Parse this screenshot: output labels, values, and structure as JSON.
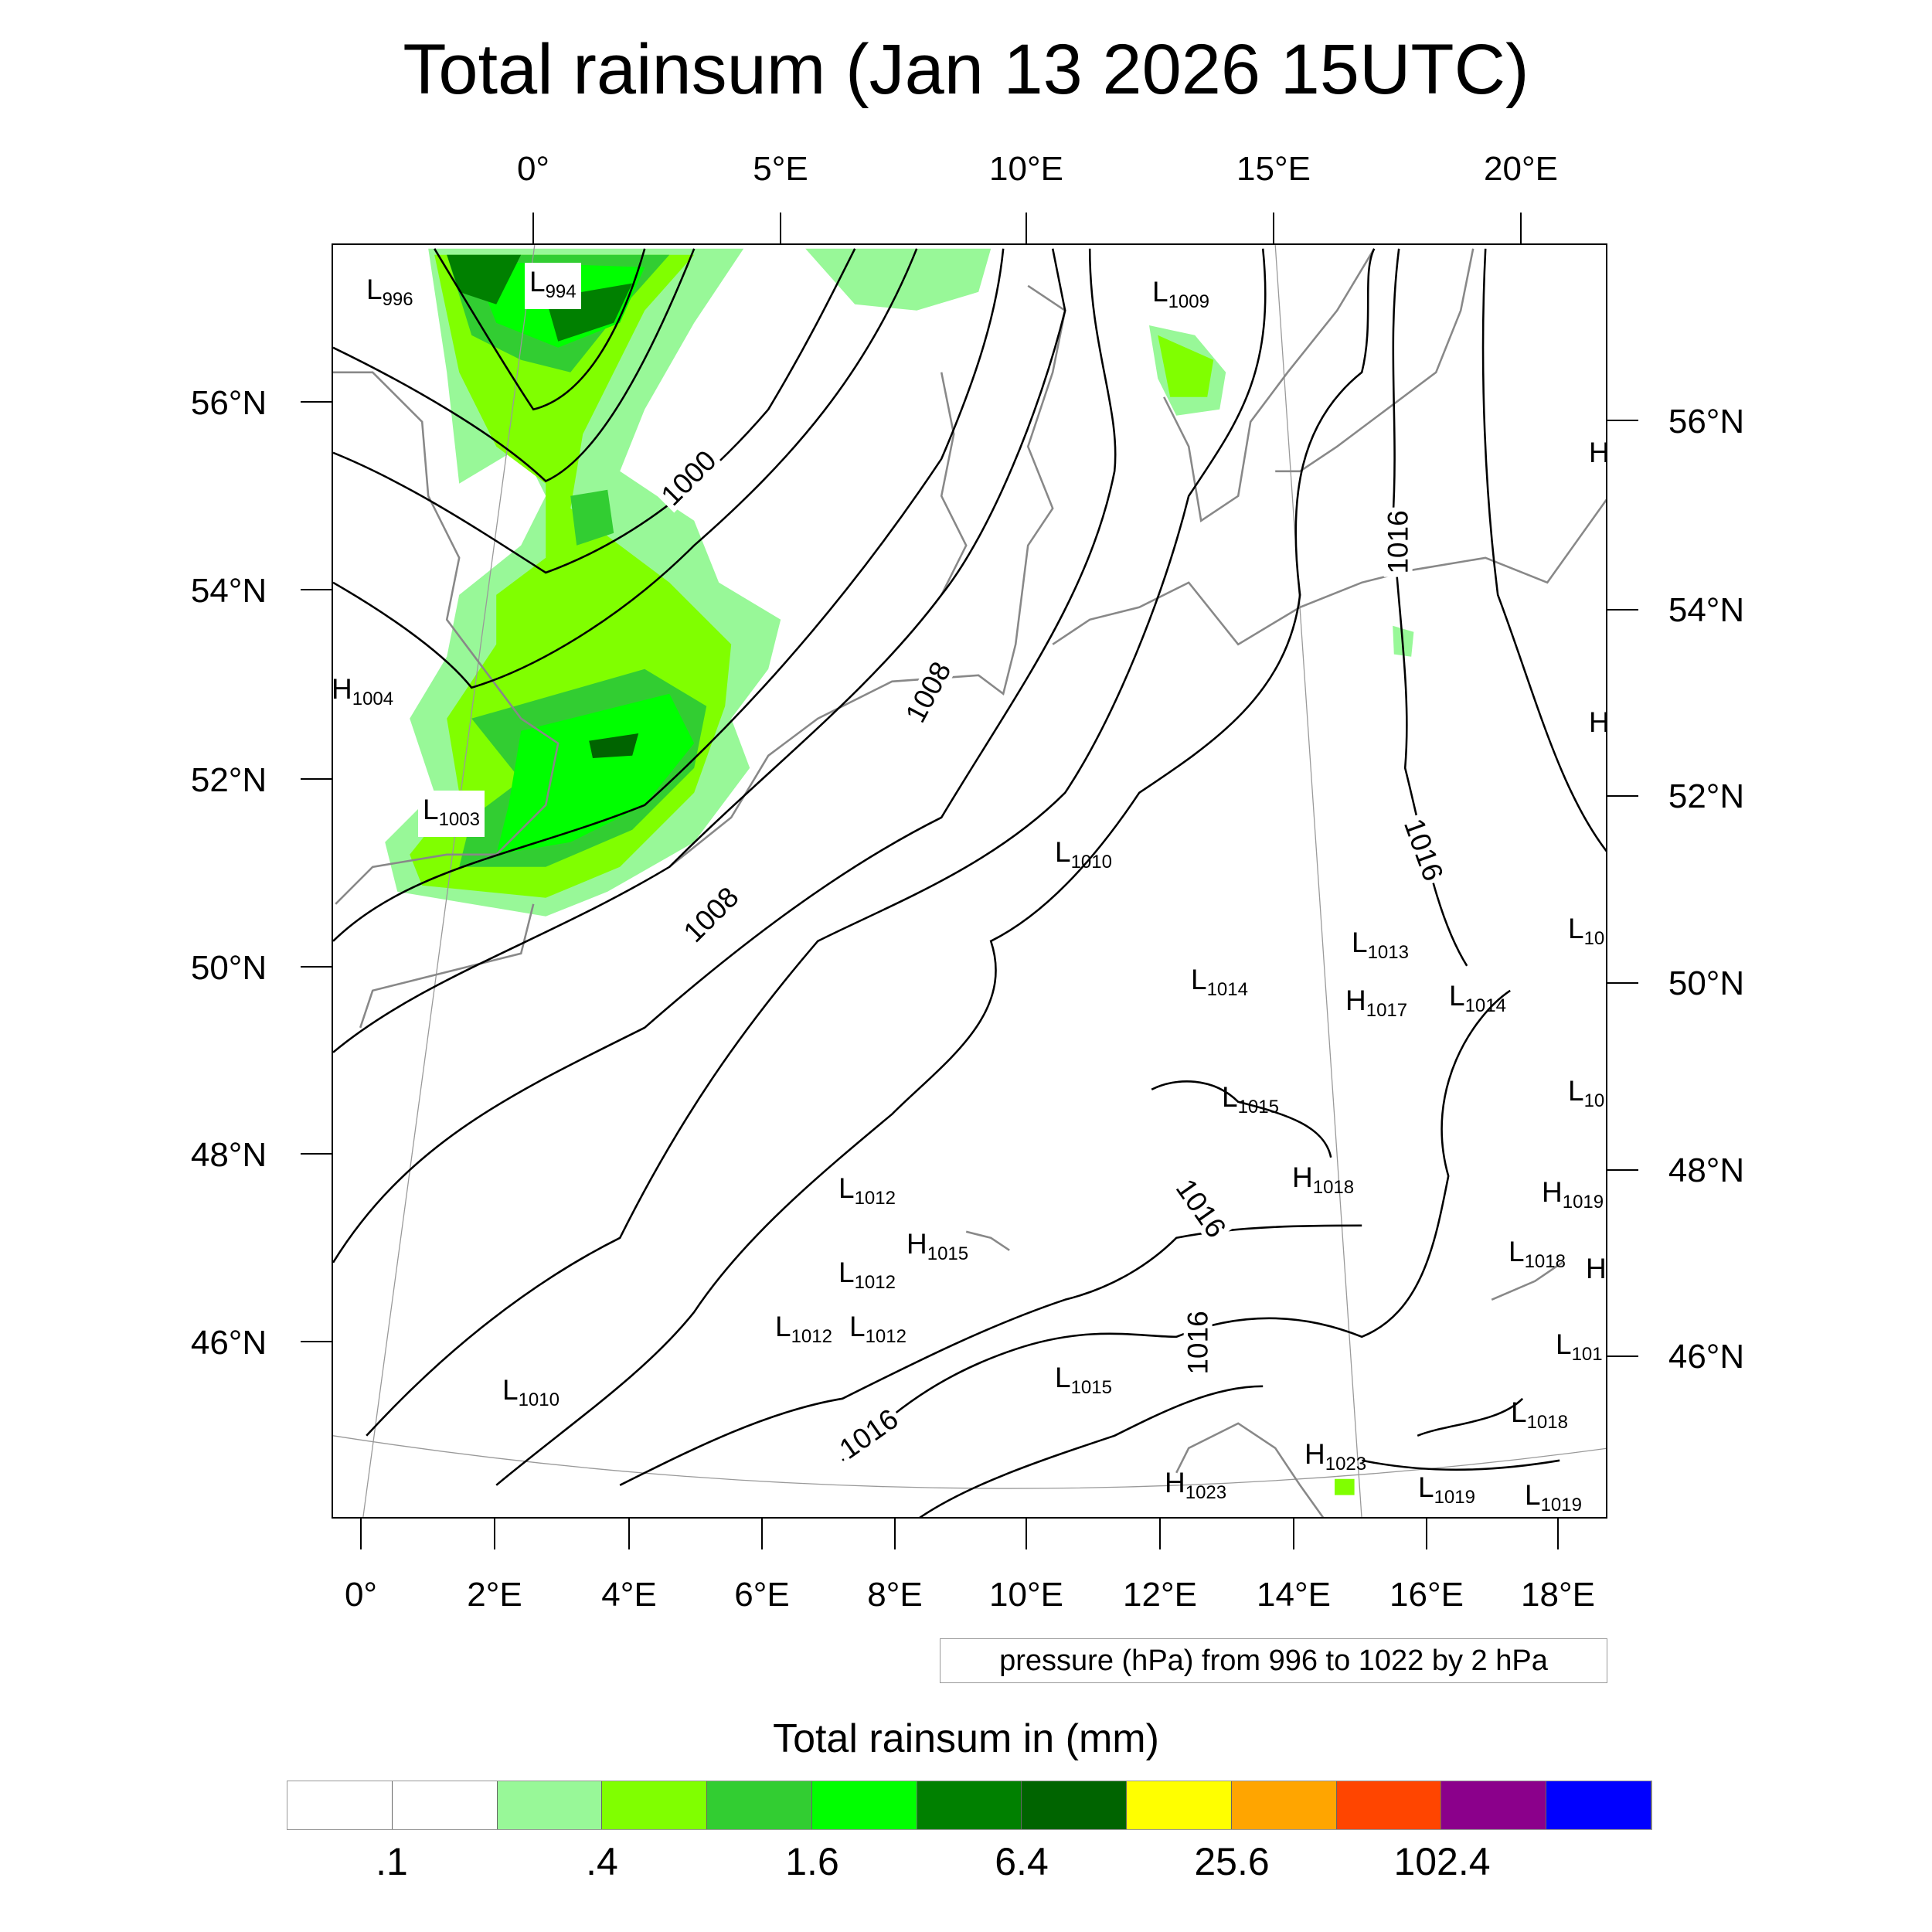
{
  "title": "Total rainsum (Jan 13 2026 15UTC)",
  "axes": {
    "top_lon": [
      "0°",
      "5°E",
      "10°E",
      "15°E",
      "20°E"
    ],
    "left_lat": [
      "56°N",
      "54°N",
      "52°N",
      "50°N",
      "48°N",
      "46°N"
    ],
    "right_lat": [
      "56°N",
      "54°N",
      "52°N",
      "50°N",
      "48°N",
      "46°N"
    ],
    "bottom_lon": [
      "0°",
      "2°E",
      "4°E",
      "6°E",
      "8°E",
      "10°E",
      "12°E",
      "14°E",
      "16°E",
      "18°E"
    ]
  },
  "pressure_centers": [
    {
      "type": "L",
      "value": "996"
    },
    {
      "type": "L",
      "value": "994"
    },
    {
      "type": "L",
      "value": "1009"
    },
    {
      "type": "H",
      "value": "1004"
    },
    {
      "type": "L",
      "value": "1003"
    },
    {
      "type": "L",
      "value": "1010"
    },
    {
      "type": "L",
      "value": "1013"
    },
    {
      "type": "L",
      "value": "1014"
    },
    {
      "type": "H",
      "value": "1017"
    },
    {
      "type": "L",
      "value": "1014"
    },
    {
      "type": "L",
      "value": "1015"
    },
    {
      "type": "H",
      "value": "1018"
    },
    {
      "type": "L",
      "value": "1012"
    },
    {
      "type": "H",
      "value": "1015"
    },
    {
      "type": "L",
      "value": "1012"
    },
    {
      "type": "L",
      "value": "1012"
    },
    {
      "type": "L",
      "value": "1012"
    },
    {
      "type": "L",
      "value": "1015"
    },
    {
      "type": "L",
      "value": "1010"
    },
    {
      "type": "H",
      "value": "1023"
    },
    {
      "type": "H",
      "value": "1023"
    },
    {
      "type": "L",
      "value": "1019"
    },
    {
      "type": "L",
      "value": "1019"
    },
    {
      "type": "L",
      "value": "1018"
    },
    {
      "type": "L",
      "value": "1018"
    },
    {
      "type": "H",
      "value": "1019"
    },
    {
      "type": "L",
      "value": "10"
    },
    {
      "type": "L",
      "value": "10"
    },
    {
      "type": "L",
      "value": "101"
    },
    {
      "type": "H",
      "value": ""
    },
    {
      "type": "H",
      "value": ""
    },
    {
      "type": "H",
      "value": ""
    }
  ],
  "contour_labels": [
    "1000",
    "1008",
    "1008",
    "1016",
    "1016",
    "1016",
    "1016",
    "1016"
  ],
  "legend_text": "pressure (hPa) from 996 to 1022 by 2 hPa",
  "colorbar": {
    "title": "Total rainsum in (mm)",
    "colors": [
      "#ffffff",
      "#ffffff",
      "#98f898",
      "#80ff00",
      "#32cd32",
      "#00ff00",
      "#008000",
      "#006400",
      "#ffff00",
      "#ffa500",
      "#ff4500",
      "#8b008b",
      "#0000ff"
    ],
    "labels": [
      ".1",
      ".4",
      "1.6",
      "6.4",
      "25.6",
      "102.4"
    ]
  }
}
